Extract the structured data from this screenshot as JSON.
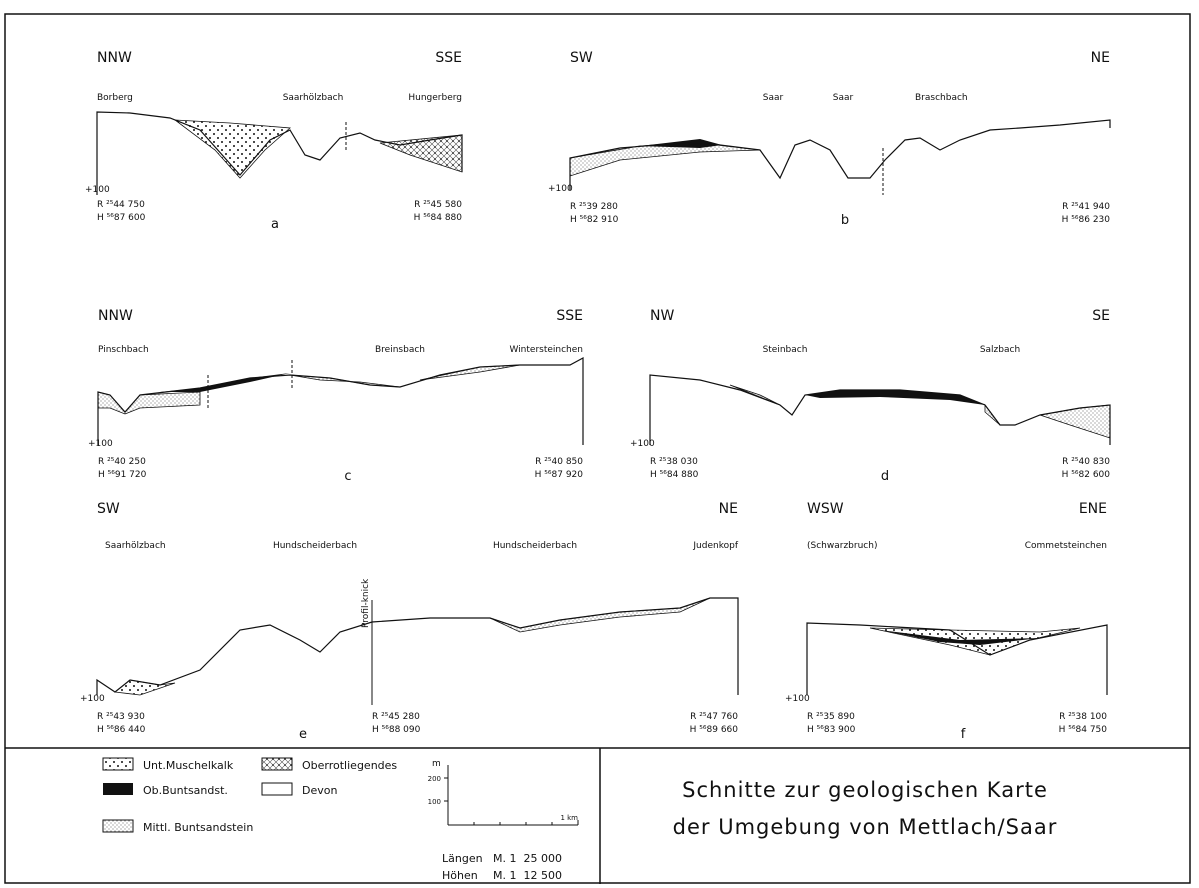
{
  "panels": [
    {
      "letter": "a",
      "left": "NNW",
      "right": "SSE",
      "places": [
        "Borberg",
        "Saarhölzbach",
        "Hungerberg"
      ],
      "height_mark": "+100",
      "coords": [
        {
          "r": "R ²⁵44 750",
          "h": "H ⁵⁶87 600"
        },
        {
          "r": "R ²⁵45 580",
          "h": "H ⁵⁶84 880"
        }
      ]
    },
    {
      "letter": "b",
      "left": "SW",
      "right": "NE",
      "places": [
        "Saar",
        "Saar",
        "Braschbach"
      ],
      "height_mark": "+100",
      "coords": [
        {
          "r": "R ²⁵39 280",
          "h": "H ⁵⁶82 910"
        },
        {
          "r": "R ²⁵41 940",
          "h": "H ⁵⁶86 230"
        }
      ]
    },
    {
      "letter": "c",
      "left": "NNW",
      "right": "SSE",
      "places": [
        "Pinschbach",
        "Breinsbach",
        "Wintersteinchen"
      ],
      "height_mark": "+100",
      "coords": [
        {
          "r": "R ²⁵40 250",
          "h": "H ⁵⁶91 720"
        },
        {
          "r": "R ²⁵40 850",
          "h": "H ⁵⁶87 920"
        }
      ]
    },
    {
      "letter": "d",
      "left": "NW",
      "right": "SE",
      "places": [
        "Steinbach",
        "Salzbach"
      ],
      "height_mark": "+100",
      "coords": [
        {
          "r": "R ²⁵38 030",
          "h": "H ⁵⁶84 880"
        },
        {
          "r": "R ²⁵40 830",
          "h": "H ⁵⁶82 600"
        }
      ]
    },
    {
      "letter": "e",
      "left": "SW",
      "right": "NE",
      "places": [
        "Saarhölzbach",
        "Hundscheiderbach",
        "Hundscheiderbach",
        "Judenkopf"
      ],
      "height_mark": "+100",
      "annotation": "Profil-knick",
      "coords": [
        {
          "r": "R ²⁵43 930",
          "h": "H ⁵⁶86 440"
        },
        {
          "r": "R ²⁵45 280",
          "h": "H ⁵⁶88 090"
        },
        {
          "r": "R ²⁵47 760",
          "h": "H ⁵⁶89 660"
        }
      ]
    },
    {
      "letter": "f",
      "left": "WSW",
      "right": "ENE",
      "places": [
        "(Schwarzbruch)",
        "Commetsteinchen"
      ],
      "height_mark": "+100",
      "coords": [
        {
          "r": "R ²⁵35 890",
          "h": "H ⁵⁶83 900"
        },
        {
          "r": "R ²⁵38 100",
          "h": "H ⁵⁶84 750"
        }
      ]
    }
  ],
  "legend": [
    "Unt.Muschelkalk",
    "Oberrotliegendes",
    "Ob.Buntsandst.",
    "Devon",
    "Mittl. Buntsandstein"
  ],
  "scale": {
    "unit": "m",
    "ticks": [
      "200",
      "100"
    ],
    "length": "1 km",
    "rows": [
      {
        "label": "Längen",
        "ratio": "M. 1  25 000"
      },
      {
        "label": "Höhen",
        "ratio": "M. 1  12 500"
      }
    ]
  },
  "title": [
    "Schnitte zur geologischen Karte",
    "der Umgebung von Mettlach/Saar"
  ]
}
